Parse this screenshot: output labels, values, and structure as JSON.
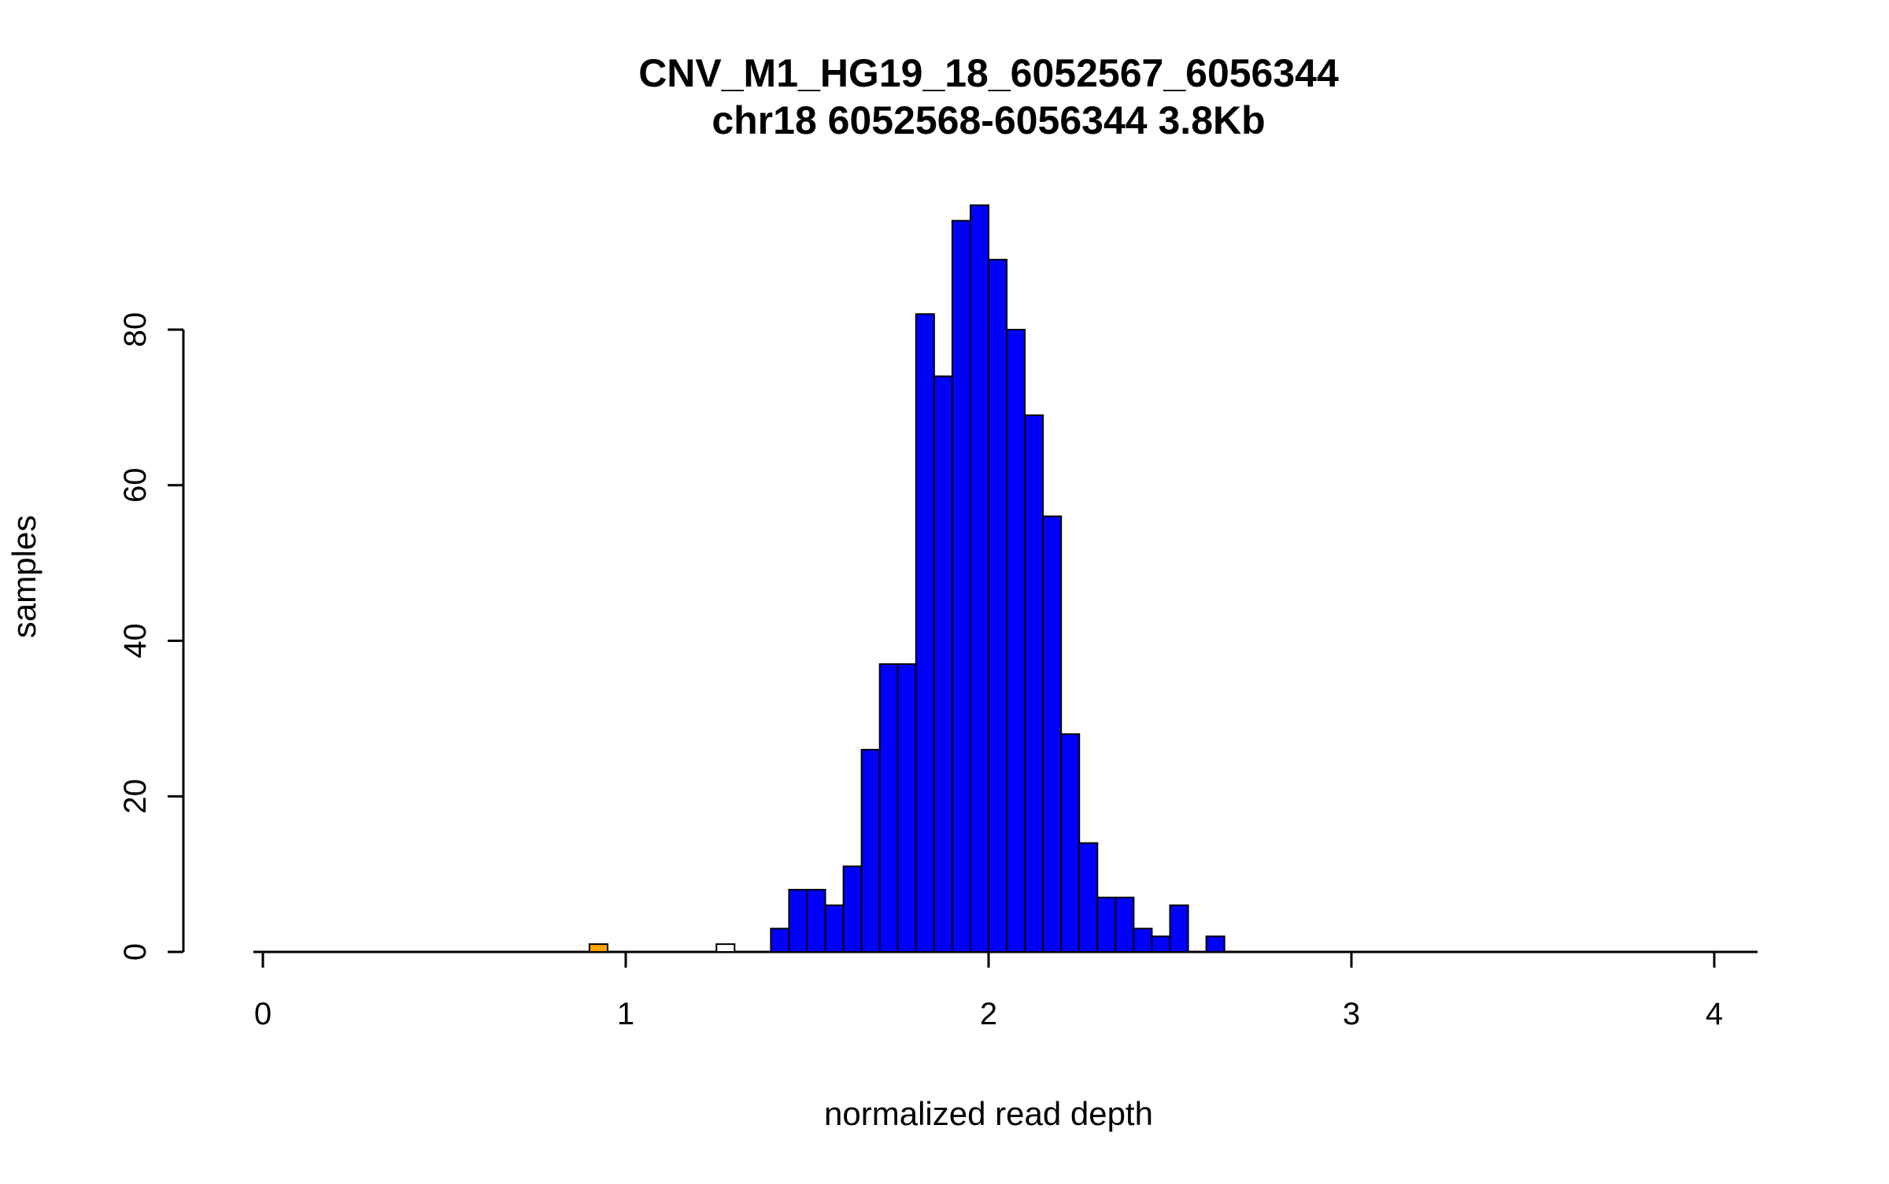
{
  "chart_data": {
    "type": "bar",
    "subtype": "histogram",
    "title": "CNV_M1_HG19_18_6052567_6056344",
    "subtitle": "chr18 6052568-6056344 3.8Kb",
    "xlabel": "normalized read depth",
    "ylabel": "samples",
    "x_ticks": [
      0,
      1,
      2,
      3,
      4
    ],
    "y_ticks": [
      0,
      20,
      40,
      60,
      80
    ],
    "xlim": [
      -0.07,
      4.12
    ],
    "ylim": [
      0,
      96
    ],
    "bin_width": 0.05,
    "bar_border_color": "#000000",
    "colors": {
      "main": "#0000FF",
      "outlier_low": "#FFA500",
      "outlier_mid": "#FFFFFF"
    },
    "bars": [
      {
        "x": 0.9,
        "height": 1,
        "color": "#FFA500"
      },
      {
        "x": 1.25,
        "height": 1,
        "color": "#FFFFFF"
      },
      {
        "x": 1.4,
        "height": 3,
        "color": "#0000FF"
      },
      {
        "x": 1.45,
        "height": 8,
        "color": "#0000FF"
      },
      {
        "x": 1.5,
        "height": 8,
        "color": "#0000FF"
      },
      {
        "x": 1.55,
        "height": 6,
        "color": "#0000FF"
      },
      {
        "x": 1.6,
        "height": 11,
        "color": "#0000FF"
      },
      {
        "x": 1.65,
        "height": 26,
        "color": "#0000FF"
      },
      {
        "x": 1.7,
        "height": 37,
        "color": "#0000FF"
      },
      {
        "x": 1.75,
        "height": 37,
        "color": "#0000FF"
      },
      {
        "x": 1.8,
        "height": 82,
        "color": "#0000FF"
      },
      {
        "x": 1.85,
        "height": 74,
        "color": "#0000FF"
      },
      {
        "x": 1.9,
        "height": 94,
        "color": "#0000FF"
      },
      {
        "x": 1.95,
        "height": 96,
        "color": "#0000FF"
      },
      {
        "x": 2.0,
        "height": 89,
        "color": "#0000FF"
      },
      {
        "x": 2.05,
        "height": 80,
        "color": "#0000FF"
      },
      {
        "x": 2.1,
        "height": 69,
        "color": "#0000FF"
      },
      {
        "x": 2.15,
        "height": 56,
        "color": "#0000FF"
      },
      {
        "x": 2.2,
        "height": 28,
        "color": "#0000FF"
      },
      {
        "x": 2.25,
        "height": 14,
        "color": "#0000FF"
      },
      {
        "x": 2.3,
        "height": 7,
        "color": "#0000FF"
      },
      {
        "x": 2.35,
        "height": 7,
        "color": "#0000FF"
      },
      {
        "x": 2.4,
        "height": 3,
        "color": "#0000FF"
      },
      {
        "x": 2.45,
        "height": 2,
        "color": "#0000FF"
      },
      {
        "x": 2.5,
        "height": 6,
        "color": "#0000FF"
      },
      {
        "x": 2.6,
        "height": 2,
        "color": "#0000FF"
      }
    ]
  }
}
